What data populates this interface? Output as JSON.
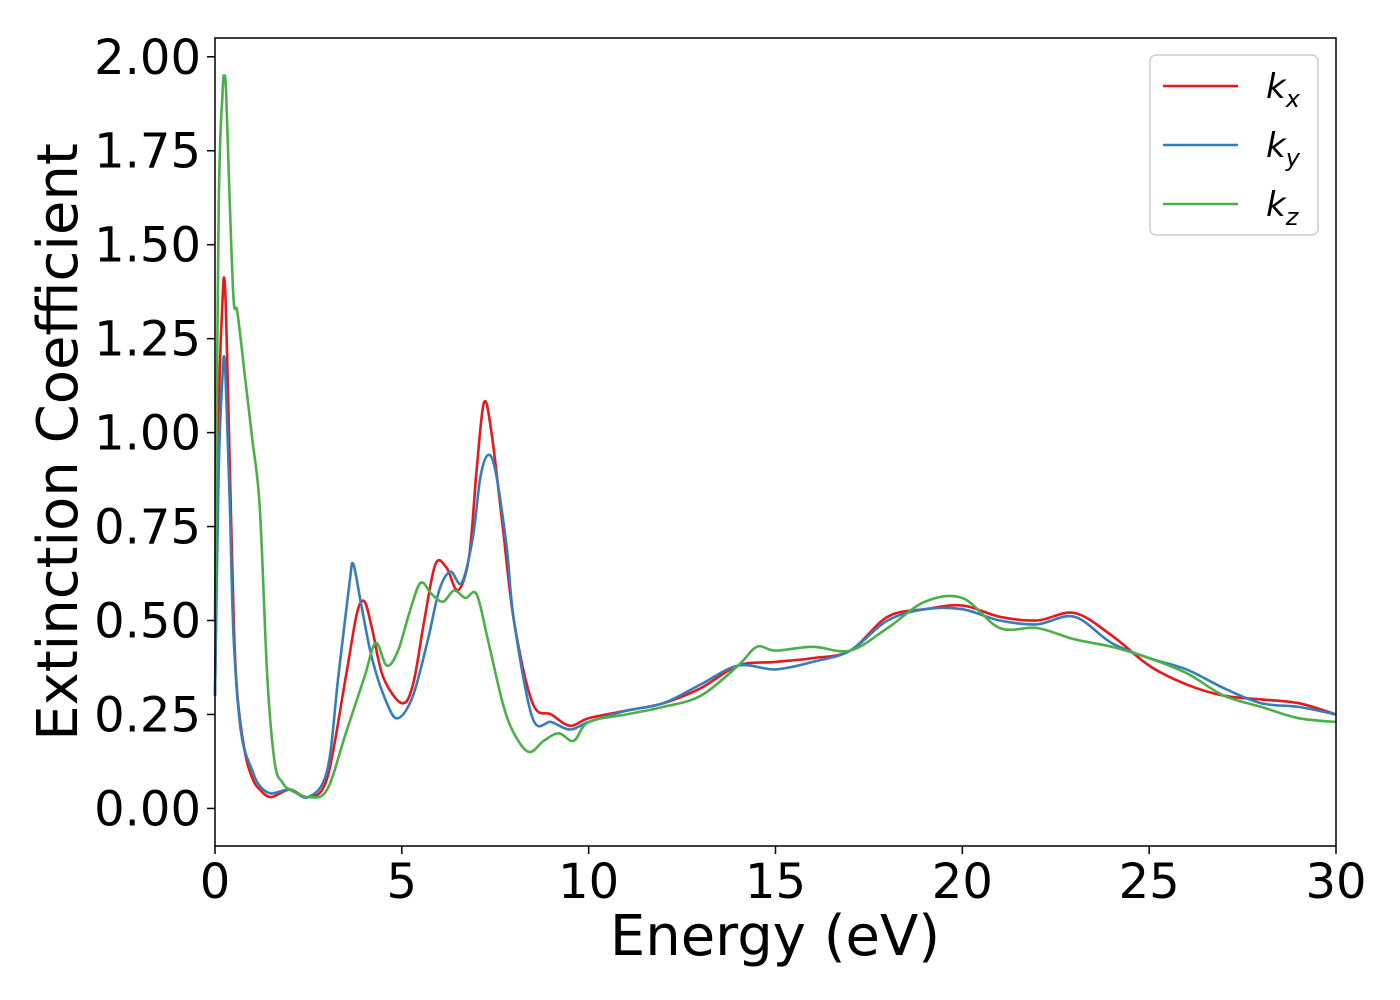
{
  "chart_data": {
    "type": "line",
    "title": "",
    "xlabel": "Energy (eV)",
    "ylabel": "Extinction Coefficient",
    "xlim": [
      0,
      30
    ],
    "ylim": [
      -0.1,
      2.05
    ],
    "xticks": [
      0,
      5,
      10,
      15,
      20,
      25,
      30
    ],
    "xtick_labels": [
      "0",
      "5",
      "10",
      "15",
      "20",
      "25",
      "30"
    ],
    "yticks": [
      0,
      0.25,
      0.5,
      0.75,
      1.0,
      1.25,
      1.5,
      1.75,
      2.0
    ],
    "ytick_labels": [
      "0.00",
      "0.25",
      "0.50",
      "0.75",
      "1.00",
      "1.25",
      "1.50",
      "1.75",
      "2.00"
    ],
    "grid": false,
    "legend_position": "top-right",
    "series": [
      {
        "name": "k_x",
        "label_base": "k",
        "label_sub": "x",
        "color": "#e41a1c",
        "x": [
          0,
          0.1,
          0.2,
          0.25,
          0.3,
          0.4,
          0.5,
          0.6,
          0.8,
          1.0,
          1.2,
          1.5,
          2.0,
          2.5,
          3.0,
          3.5,
          3.8,
          4.0,
          4.2,
          4.5,
          5.0,
          5.3,
          5.6,
          5.9,
          6.2,
          6.5,
          6.8,
          7.0,
          7.2,
          7.4,
          7.7,
          8.0,
          8.5,
          9.0,
          9.5,
          10.0,
          11.0,
          12.0,
          13.0,
          14.0,
          15.0,
          16.0,
          17.0,
          18.0,
          19.0,
          20.0,
          21.0,
          22.0,
          23.0,
          24.0,
          25.0,
          26.0,
          27.0,
          28.0,
          29.0,
          30.0
        ],
        "y": [
          0.3,
          1.05,
          1.35,
          1.41,
          1.3,
          0.9,
          0.5,
          0.3,
          0.15,
          0.08,
          0.05,
          0.03,
          0.05,
          0.03,
          0.08,
          0.35,
          0.52,
          0.55,
          0.48,
          0.35,
          0.28,
          0.33,
          0.5,
          0.65,
          0.64,
          0.58,
          0.67,
          0.9,
          1.08,
          1.0,
          0.75,
          0.5,
          0.28,
          0.25,
          0.22,
          0.24,
          0.26,
          0.28,
          0.32,
          0.38,
          0.39,
          0.4,
          0.42,
          0.51,
          0.53,
          0.54,
          0.51,
          0.5,
          0.52,
          0.46,
          0.38,
          0.33,
          0.3,
          0.29,
          0.28,
          0.25
        ]
      },
      {
        "name": "k_y",
        "label_base": "k",
        "label_sub": "y",
        "color": "#377eb8",
        "x": [
          0,
          0.1,
          0.2,
          0.25,
          0.3,
          0.4,
          0.5,
          0.7,
          1.0,
          1.2,
          1.5,
          2.0,
          2.5,
          3.0,
          3.3,
          3.6,
          3.7,
          3.9,
          4.2,
          4.6,
          4.9,
          5.3,
          5.7,
          6.0,
          6.3,
          6.6,
          6.9,
          7.1,
          7.3,
          7.5,
          7.8,
          8.0,
          8.5,
          9.0,
          9.5,
          10.0,
          11.0,
          12.0,
          13.0,
          14.0,
          15.0,
          16.0,
          17.0,
          18.0,
          19.0,
          20.0,
          21.0,
          22.0,
          23.0,
          24.0,
          25.0,
          26.0,
          27.0,
          28.0,
          29.0,
          30.0
        ],
        "y": [
          0.3,
          0.9,
          1.15,
          1.2,
          1.1,
          0.8,
          0.45,
          0.2,
          0.1,
          0.06,
          0.04,
          0.05,
          0.03,
          0.1,
          0.35,
          0.6,
          0.65,
          0.55,
          0.4,
          0.28,
          0.24,
          0.3,
          0.45,
          0.58,
          0.63,
          0.6,
          0.72,
          0.88,
          0.94,
          0.9,
          0.7,
          0.5,
          0.24,
          0.23,
          0.21,
          0.23,
          0.26,
          0.28,
          0.33,
          0.38,
          0.37,
          0.39,
          0.42,
          0.5,
          0.53,
          0.53,
          0.5,
          0.49,
          0.51,
          0.44,
          0.4,
          0.37,
          0.32,
          0.28,
          0.27,
          0.25
        ]
      },
      {
        "name": "k_z",
        "label_base": "k",
        "label_sub": "z",
        "color": "#4daf4a",
        "x": [
          0,
          0.1,
          0.2,
          0.25,
          0.3,
          0.4,
          0.5,
          0.6,
          0.8,
          1.0,
          1.2,
          1.4,
          1.6,
          1.8,
          2.0,
          2.5,
          3.0,
          3.5,
          4.0,
          4.3,
          4.6,
          4.9,
          5.2,
          5.5,
          5.8,
          6.1,
          6.4,
          6.7,
          7.0,
          7.3,
          7.7,
          8.0,
          8.4,
          8.8,
          9.2,
          9.6,
          10.0,
          11.0,
          12.0,
          13.0,
          14.0,
          14.5,
          15.0,
          16.0,
          17.0,
          18.0,
          19.0,
          20.0,
          21.0,
          22.0,
          23.0,
          24.0,
          25.0,
          26.0,
          27.0,
          28.0,
          29.0,
          30.0
        ],
        "y": [
          0.5,
          1.6,
          1.9,
          1.95,
          1.9,
          1.6,
          1.35,
          1.32,
          1.15,
          0.98,
          0.8,
          0.35,
          0.12,
          0.07,
          0.05,
          0.03,
          0.05,
          0.2,
          0.35,
          0.44,
          0.38,
          0.42,
          0.52,
          0.6,
          0.57,
          0.55,
          0.58,
          0.56,
          0.57,
          0.45,
          0.28,
          0.2,
          0.15,
          0.18,
          0.2,
          0.18,
          0.23,
          0.25,
          0.27,
          0.3,
          0.38,
          0.43,
          0.42,
          0.43,
          0.42,
          0.48,
          0.55,
          0.56,
          0.48,
          0.48,
          0.45,
          0.43,
          0.4,
          0.36,
          0.3,
          0.27,
          0.24,
          0.23
        ]
      }
    ]
  }
}
